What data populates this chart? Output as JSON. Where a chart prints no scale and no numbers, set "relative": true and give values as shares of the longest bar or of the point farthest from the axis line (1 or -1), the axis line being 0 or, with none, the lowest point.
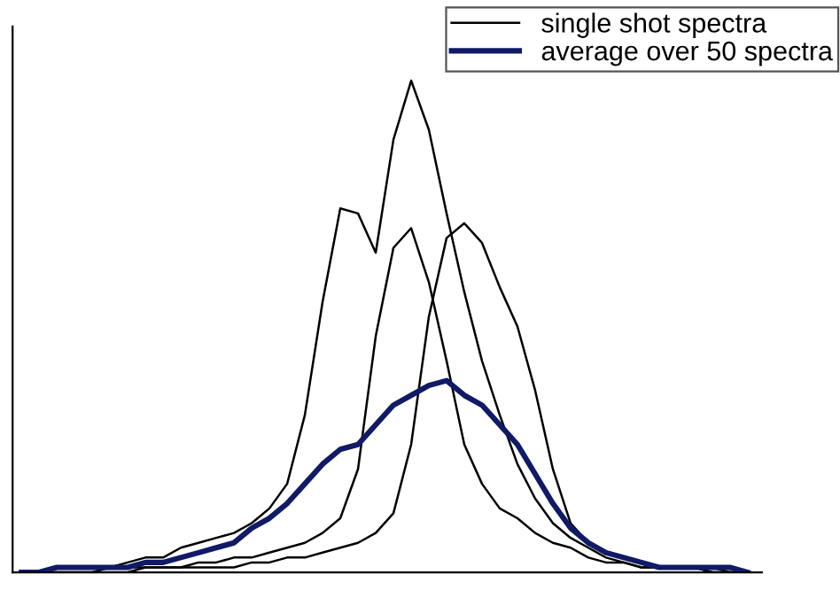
{
  "chart_data": {
    "type": "line",
    "relative": true,
    "legend": "top right",
    "categories": [
      null,
      null,
      null,
      null,
      null,
      null,
      null,
      null,
      null,
      null,
      null,
      null,
      null,
      null,
      null,
      null,
      null,
      null,
      null,
      null,
      null,
      null,
      null,
      null,
      null,
      null,
      null,
      null,
      null,
      null,
      null,
      null,
      null,
      null,
      null,
      null,
      null,
      null,
      null,
      null,
      null,
      null
    ],
    "series": [
      {
        "name": "single shot spectra",
        "color": "#000000",
        "values": [
          0,
          0,
          0.01,
          0.01,
          0.01,
          0.01,
          0.02,
          0.03,
          0.03,
          0.05,
          0.06,
          0.07,
          0.08,
          0.1,
          0.13,
          0.18,
          0.32,
          0.55,
          0.74,
          0.73,
          0.65,
          0.88,
          1,
          0.9,
          0.73,
          0.57,
          0.43,
          0.32,
          0.22,
          0.15,
          0.1,
          0.07,
          0.05,
          0.03,
          0.02,
          0.01,
          0.01,
          0.01,
          0.01,
          0,
          0,
          0
        ]
      },
      {
        "color": "#000000",
        "values": [
          0,
          0,
          0,
          0,
          0,
          0.01,
          0.01,
          0.01,
          0.01,
          0.01,
          0.02,
          0.02,
          0.03,
          0.03,
          0.04,
          0.05,
          0.06,
          0.08,
          0.11,
          0.21,
          0.48,
          0.66,
          0.7,
          0.59,
          0.43,
          0.26,
          0.18,
          0.13,
          0.11,
          0.08,
          0.06,
          0.05,
          0.03,
          0.02,
          0.02,
          0.01,
          0.01,
          0.01,
          0.01,
          0,
          0,
          0
        ]
      },
      {
        "color": "#000000",
        "values": [
          0,
          0,
          0,
          0,
          0,
          0,
          0,
          0.01,
          0.01,
          0.01,
          0.01,
          0.01,
          0.01,
          0.02,
          0.02,
          0.03,
          0.03,
          0.04,
          0.05,
          0.06,
          0.08,
          0.12,
          0.26,
          0.52,
          0.68,
          0.71,
          0.67,
          0.58,
          0.5,
          0.37,
          0.21,
          0.1,
          0.06,
          0.04,
          0.03,
          0.02,
          0.01,
          0.01,
          0.01,
          0.01,
          0,
          0
        ]
      },
      {
        "name": "average over 50 spectra",
        "color": "#101a66",
        "values": [
          0,
          0,
          0.01,
          0.01,
          0.01,
          0.01,
          0.01,
          0.02,
          0.02,
          0.03,
          0.04,
          0.05,
          0.06,
          0.09,
          0.11,
          0.14,
          0.18,
          0.22,
          0.25,
          0.26,
          0.3,
          0.34,
          0.36,
          0.38,
          0.39,
          0.36,
          0.34,
          0.3,
          0.26,
          0.2,
          0.14,
          0.09,
          0.06,
          0.04,
          0.03,
          0.02,
          0.01,
          0.01,
          0.01,
          0.01,
          0.01,
          0
        ]
      }
    ]
  }
}
